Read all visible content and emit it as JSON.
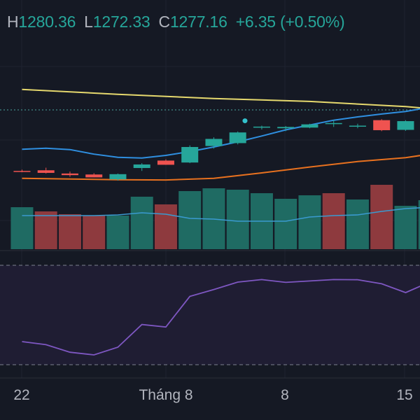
{
  "legend": {
    "high_label": "H",
    "high_value": "1280.36",
    "low_label": "L",
    "low_value": "1272.33",
    "close_label": "C",
    "close_value": "1277.16",
    "change": "+6.35",
    "change_pct": "(+0.50%)"
  },
  "x_axis": {
    "labels": [
      "22",
      "Tháng 8",
      "8",
      "15"
    ]
  },
  "colors": {
    "background": "#151924",
    "up": "#26a69a",
    "down": "#ef5350",
    "volume_up": "#1f6b63",
    "volume_down": "#8e3a3e",
    "ma_blue": "#2f8fe0",
    "ma_orange": "#e8711f",
    "ma_yellow": "#e6d96e",
    "volume_ma": "#3a9ad0",
    "rsi_line": "#7e57c2",
    "rsi_band": "#1f1d33",
    "legend_text": "#b2b5be"
  },
  "chart_data": [
    {
      "type": "candlestick",
      "x": [
        -1,
        0,
        1,
        2,
        3,
        4,
        5,
        6,
        7,
        8,
        9,
        10,
        11,
        12,
        13,
        14,
        15,
        16
      ],
      "candles": [
        {
          "o": 1262.6,
          "h": 1263.0,
          "l": 1262.2,
          "c": 1262.5
        },
        {
          "o": 1262.8,
          "h": 1263.6,
          "l": 1261.8,
          "c": 1262.0
        },
        {
          "o": 1261.8,
          "h": 1262.4,
          "l": 1260.8,
          "c": 1261.3
        },
        {
          "o": 1261.5,
          "h": 1261.9,
          "l": 1260.6,
          "c": 1260.6
        },
        {
          "o": 1260.0,
          "h": 1261.8,
          "l": 1259.6,
          "c": 1261.6
        },
        {
          "o": 1263.5,
          "h": 1265.0,
          "l": 1262.6,
          "c": 1264.6
        },
        {
          "o": 1265.8,
          "h": 1266.2,
          "l": 1264.5,
          "c": 1264.5
        },
        {
          "o": 1265.2,
          "h": 1270.5,
          "l": 1265.0,
          "c": 1270.0
        },
        {
          "o": 1270.3,
          "h": 1273.0,
          "l": 1269.5,
          "c": 1272.5
        },
        {
          "o": 1271.2,
          "h": 1274.8,
          "l": 1270.8,
          "c": 1274.5
        },
        {
          "o": 1276.0,
          "h": 1276.6,
          "l": 1275.4,
          "c": 1276.3
        },
        {
          "o": 1275.8,
          "h": 1276.5,
          "l": 1274.9,
          "c": 1276.2
        },
        {
          "o": 1276.0,
          "h": 1277.2,
          "l": 1275.8,
          "c": 1277.0
        },
        {
          "o": 1277.4,
          "h": 1278.4,
          "l": 1276.2,
          "c": 1277.4
        },
        {
          "o": 1276.6,
          "h": 1277.2,
          "l": 1275.8,
          "c": 1276.6
        },
        {
          "o": 1278.3,
          "h": 1278.6,
          "l": 1274.9,
          "c": 1275.2
        },
        {
          "o": 1275.3,
          "h": 1278.3,
          "l": 1275.0,
          "c": 1278.0
        },
        {
          "o": 1280.3,
          "h": 1280.4,
          "l": 1279.7,
          "c": 1279.9
        }
      ],
      "marker": {
        "x": 8.3,
        "y": 1278.1
      },
      "overlays": [
        {
          "color": "yellow",
          "points": [
            [
              -1,
              1287.8
            ],
            [
              3,
              1286.3
            ],
            [
              7,
              1285.0
            ],
            [
              11,
              1284.1
            ],
            [
              15,
              1282.5
            ],
            [
              17,
              1281.3
            ]
          ]
        },
        {
          "color": "blue",
          "points": [
            [
              -1,
              1269.3
            ],
            [
              0,
              1269.6
            ],
            [
              1,
              1269.2
            ],
            [
              2,
              1267.8
            ],
            [
              3,
              1266.8
            ],
            [
              4,
              1266.6
            ],
            [
              5,
              1267.4
            ],
            [
              6,
              1268.6
            ],
            [
              7,
              1270.0
            ],
            [
              8,
              1271.6
            ],
            [
              9,
              1273.4
            ],
            [
              10,
              1275.3
            ],
            [
              11,
              1276.8
            ],
            [
              12,
              1278.3
            ],
            [
              13,
              1279.3
            ],
            [
              14,
              1280.2
            ],
            [
              15,
              1281.0
            ],
            [
              16,
              1282.3
            ],
            [
              17,
              1283.0
            ]
          ]
        },
        {
          "color": "orange",
          "points": [
            [
              -1,
              1260.3
            ],
            [
              3,
              1259.9
            ],
            [
              5,
              1259.8
            ],
            [
              7,
              1260.3
            ],
            [
              9,
              1262.0
            ],
            [
              11,
              1263.8
            ],
            [
              13,
              1265.5
            ],
            [
              15,
              1266.7
            ],
            [
              17,
              1268.9
            ]
          ]
        }
      ],
      "dotted_line": 1281.5
    },
    {
      "type": "bar",
      "name": "volume",
      "x": [
        -1,
        0,
        1,
        2,
        3,
        4,
        5,
        6,
        7,
        8,
        9,
        10,
        11,
        12,
        13,
        14,
        15,
        16
      ],
      "values": [
        60,
        54,
        50,
        48,
        48,
        75,
        64,
        83,
        87,
        85,
        80,
        72,
        77,
        80,
        71,
        92,
        62,
        70
      ],
      "directions": [
        "up",
        "down",
        "down",
        "down",
        "up",
        "up",
        "down",
        "up",
        "up",
        "up",
        "up",
        "up",
        "up",
        "down",
        "up",
        "down",
        "up",
        "up"
      ],
      "ma": [
        [
          -1,
          48
        ],
        [
          0,
          48
        ],
        [
          2,
          48
        ],
        [
          3,
          49
        ],
        [
          4,
          52
        ],
        [
          5,
          50
        ],
        [
          6,
          44
        ],
        [
          7,
          43
        ],
        [
          8,
          40
        ],
        [
          9,
          40
        ],
        [
          10,
          40
        ],
        [
          11,
          46
        ],
        [
          12,
          48
        ],
        [
          13,
          49
        ],
        [
          14,
          54
        ],
        [
          15,
          58
        ],
        [
          16,
          60
        ],
        [
          17,
          67
        ]
      ]
    },
    {
      "type": "line",
      "name": "rsi",
      "x": [
        -1,
        0,
        1,
        2,
        3,
        4,
        5,
        6,
        7,
        8,
        9,
        10,
        11,
        12,
        13,
        14,
        15,
        16,
        17
      ],
      "values": [
        38.0,
        35.8,
        30.4,
        28.5,
        34.0,
        50.2,
        48.4,
        70.3,
        75.2,
        80.5,
        82.3,
        80.3,
        81.3,
        82.3,
        82.2,
        79.3,
        73.0,
        80.5,
        85.5
      ],
      "bands": [
        30,
        70
      ],
      "ylim": [
        21.3,
        92.5
      ]
    }
  ]
}
